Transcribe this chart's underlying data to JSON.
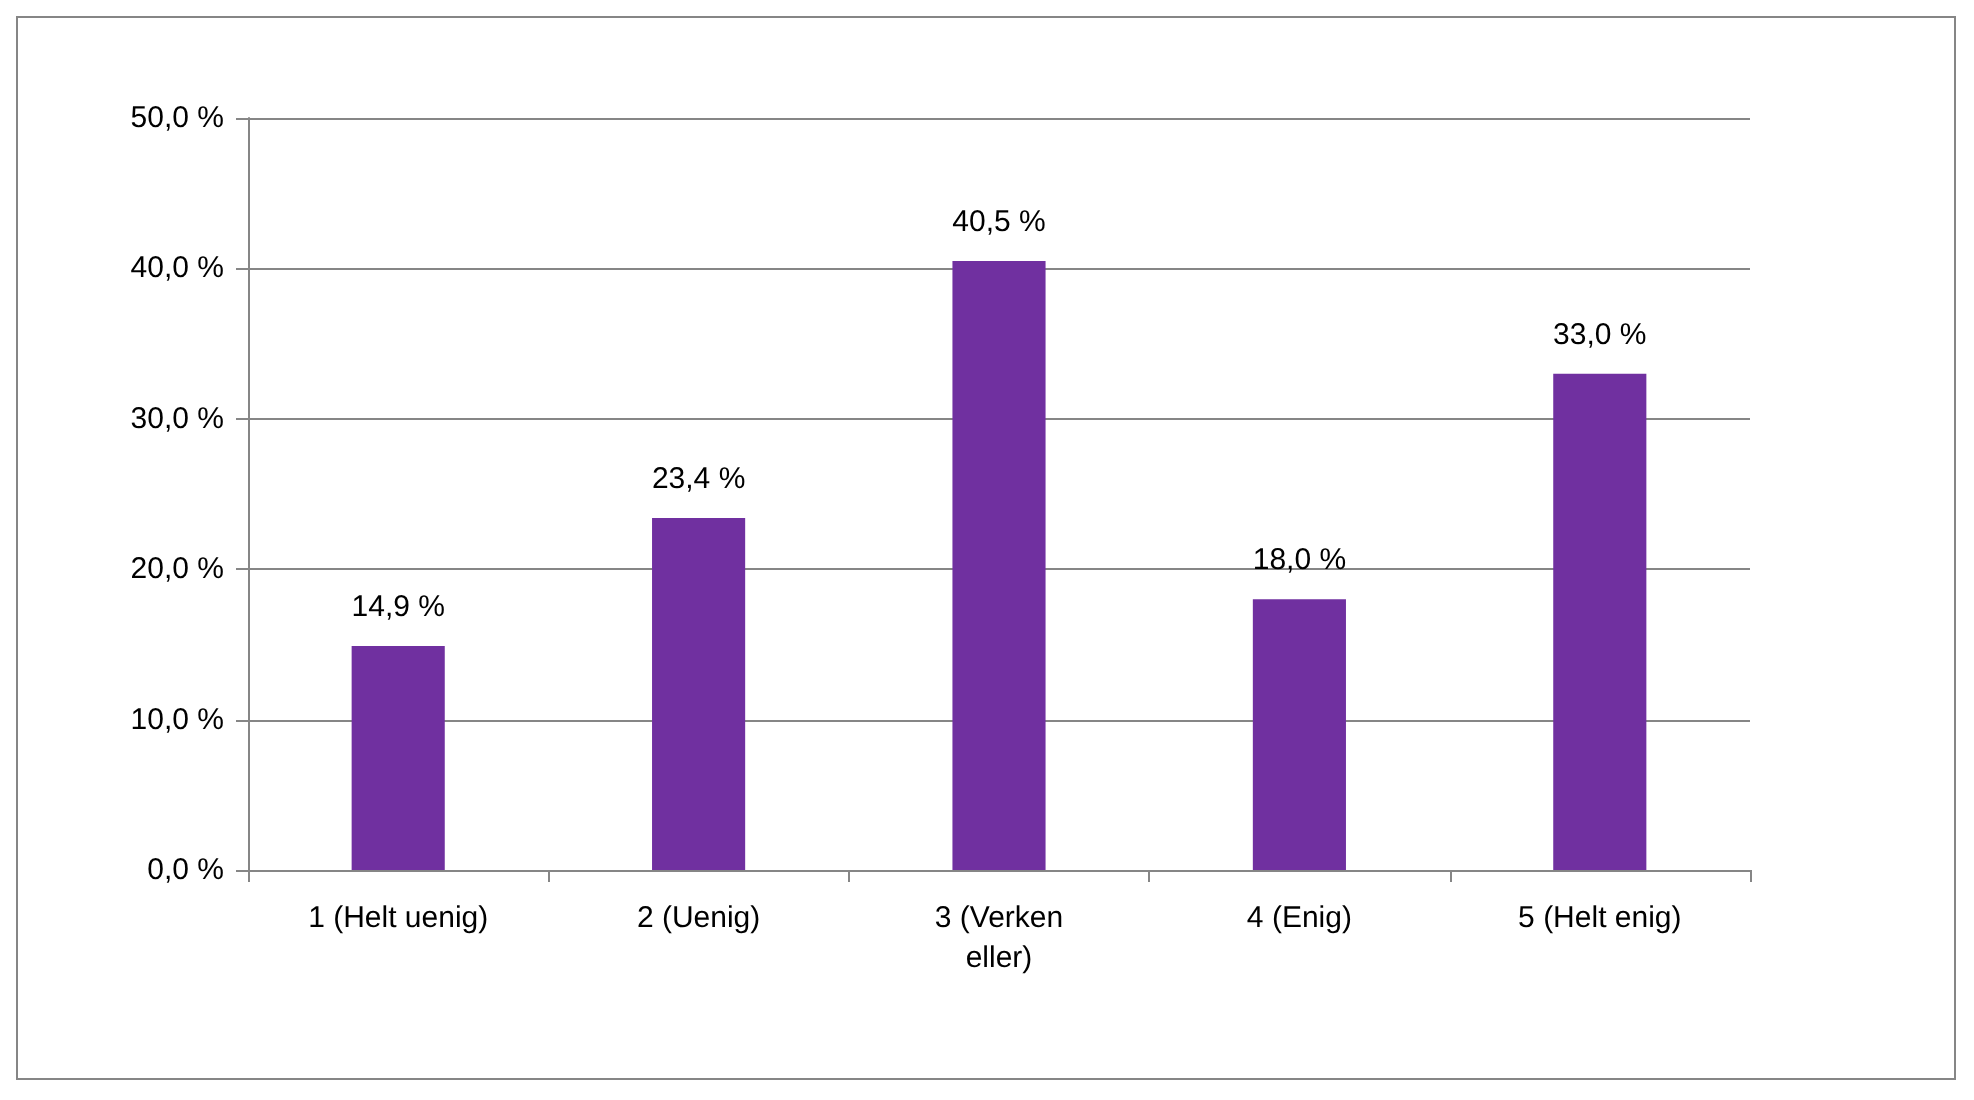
{
  "chart_data": {
    "type": "bar",
    "categories": [
      "1 (Helt uenig)",
      "2 (Uenig)",
      "3 (Verken eller)",
      "4 (Enig)",
      "5 (Helt enig)"
    ],
    "values": [
      14.9,
      23.4,
      40.5,
      18.0,
      33.0
    ],
    "value_labels": [
      "14,9 %",
      "23,4 %",
      "40,5 %",
      "18,0 %",
      "33,0 %"
    ],
    "color": "#7030a0",
    "ylim": [
      0,
      50
    ],
    "yticks": [
      {
        "value": 0,
        "label": "0,0 %"
      },
      {
        "value": 10,
        "label": "10,0 %"
      },
      {
        "value": 20,
        "label": "20,0 %"
      },
      {
        "value": 30,
        "label": "30,0 %"
      },
      {
        "value": 40,
        "label": "40,0 %"
      },
      {
        "value": 50,
        "label": "50,0 %"
      }
    ],
    "grid": "y"
  }
}
